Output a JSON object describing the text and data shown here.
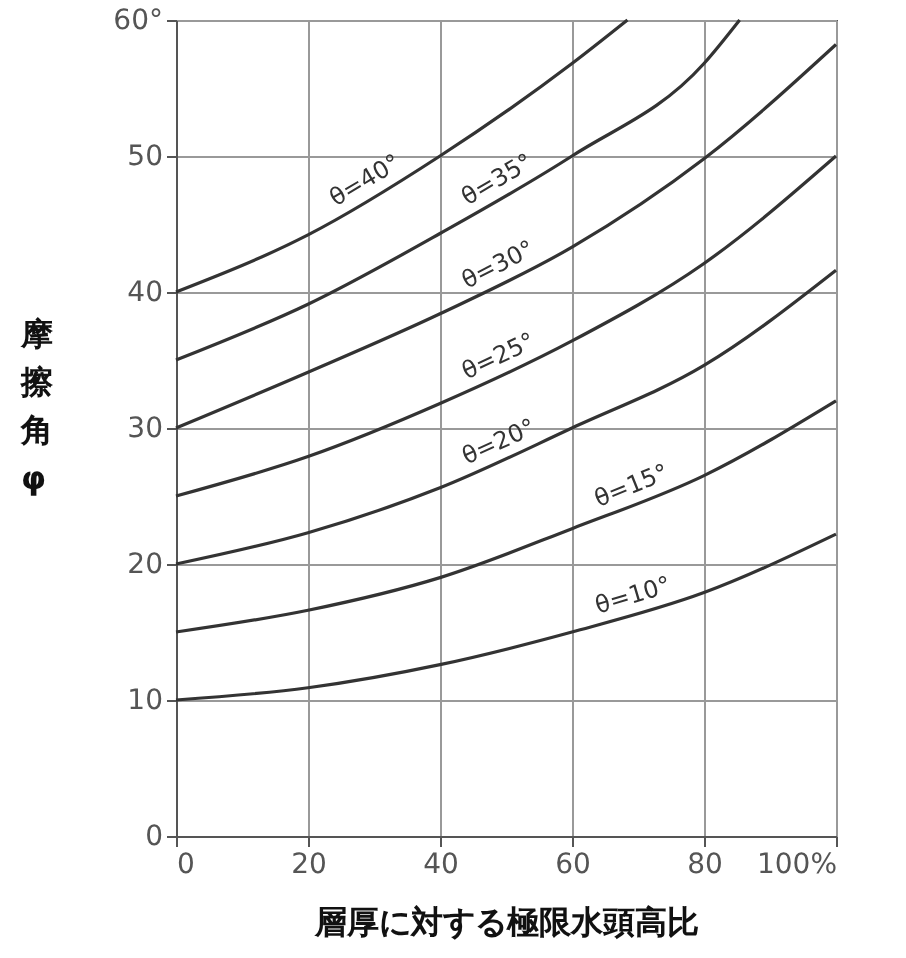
{
  "chart_data": {
    "type": "line",
    "xlabel": "層厚に対する極限水頭高比",
    "ylabel": "摩擦角φ",
    "xlim": [
      0,
      100
    ],
    "ylim": [
      0,
      60
    ],
    "xticks": [
      0,
      20,
      40,
      60,
      80,
      {
        "value": 100,
        "label": "100%"
      }
    ],
    "yticks": [
      0,
      10,
      20,
      30,
      40,
      50,
      {
        "value": 60,
        "label": "60°"
      }
    ],
    "grid": true,
    "marker": "none",
    "line_style": "solid",
    "series": [
      {
        "name": "θ=40°",
        "color": "#333333",
        "x": [
          0,
          20,
          40,
          60,
          68.4
        ],
        "values": [
          40,
          44.2,
          50,
          56.8,
          60
        ]
      },
      {
        "name": "θ=35°",
        "color": "#333333",
        "x": [
          0,
          20,
          40,
          60,
          80,
          85.4
        ],
        "values": [
          35,
          39.1,
          44.3,
          50,
          56.8,
          60
        ]
      },
      {
        "name": "θ=30°",
        "color": "#333333",
        "x": [
          0,
          20,
          40,
          60,
          80,
          100
        ],
        "values": [
          30,
          34.1,
          38.4,
          43.3,
          49.8,
          58.2
        ]
      },
      {
        "name": "θ=25°",
        "color": "#333333",
        "x": [
          0,
          20,
          40,
          60,
          80,
          100
        ],
        "values": [
          25,
          27.9,
          31.8,
          36.4,
          42.1,
          50
        ]
      },
      {
        "name": "θ=20°",
        "color": "#333333",
        "x": [
          0,
          20,
          40,
          60,
          80,
          100
        ],
        "values": [
          20,
          22.3,
          25.6,
          30,
          34.6,
          41.6
        ]
      },
      {
        "name": "θ=15°",
        "color": "#333333",
        "x": [
          0,
          20,
          40,
          60,
          80,
          100
        ],
        "values": [
          15,
          16.6,
          19,
          22.6,
          26.5,
          32
        ]
      },
      {
        "name": "θ=10°",
        "color": "#333333",
        "x": [
          0,
          20,
          40,
          60,
          80,
          100
        ],
        "values": [
          10,
          10.9,
          12.6,
          15,
          17.9,
          22.2
        ]
      }
    ]
  }
}
